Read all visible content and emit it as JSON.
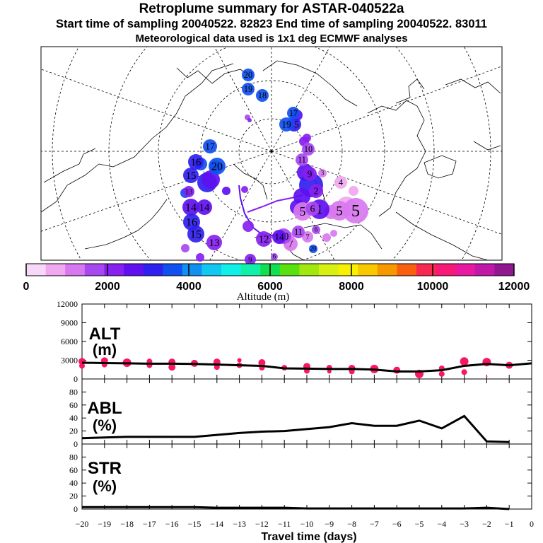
{
  "titles": {
    "main": "Retroplume summary for ASTAR-040522a",
    "sampling": "Start time of sampling 20040522. 82823     End time of sampling 20040522. 83011",
    "meteo": "Meteorological data used is 1x1 deg ECMWF analyses"
  },
  "colorbar": {
    "label": "Altitude (m)",
    "ticks": [
      0,
      2000,
      4000,
      6000,
      8000,
      10000,
      12000
    ],
    "colors": [
      "#f8d8f8",
      "#f0a8f0",
      "#d878f0",
      "#a848f0",
      "#8820f0",
      "#6010f0",
      "#3020f0",
      "#1050f0",
      "#1090f0",
      "#10c8f0",
      "#10f0e8",
      "#10f0a8",
      "#10e050",
      "#58e010",
      "#a0e810",
      "#d8f010",
      "#f8f000",
      "#f8c800",
      "#f89800",
      "#f86010",
      "#f82850",
      "#f81878",
      "#e818a0",
      "#c018a8",
      "#901890"
    ]
  },
  "map": {
    "clusters": [
      {
        "n": "1",
        "c": "#6010f0"
      },
      {
        "n": "2",
        "c": "#8820f0"
      },
      {
        "n": "3",
        "c": "#d878f0"
      },
      {
        "n": "4",
        "c": "#f0a8f0"
      },
      {
        "n": "5",
        "c": "#d878f0"
      },
      {
        "n": "6",
        "c": "#a848f0"
      },
      {
        "n": "7",
        "c": "#d878f0"
      },
      {
        "n": "8",
        "c": "#d878f0"
      },
      {
        "n": "9",
        "c": "#8820f0"
      },
      {
        "n": "10",
        "c": "#a848f0"
      },
      {
        "n": "11",
        "c": "#a848f0"
      },
      {
        "n": "12",
        "c": "#8820f0"
      },
      {
        "n": "13",
        "c": "#8820f0"
      },
      {
        "n": "14",
        "c": "#6010f0"
      },
      {
        "n": "15",
        "c": "#3020f0"
      },
      {
        "n": "16",
        "c": "#3020f0"
      },
      {
        "n": "17",
        "c": "#1050f0"
      },
      {
        "n": "18",
        "c": "#1050f0"
      },
      {
        "n": "19",
        "c": "#1050f0"
      },
      {
        "n": "20",
        "c": "#1050f0"
      }
    ]
  },
  "chart_data": [
    {
      "type": "line",
      "panel": "ALT",
      "ylabel": "ALT (m)",
      "ylim": [
        0,
        12000
      ],
      "yticks": [
        0,
        3000,
        6000,
        9000,
        12000
      ],
      "x": [
        -20,
        -19,
        -18,
        -17,
        -16,
        -15,
        -14,
        -13,
        -12,
        -11,
        -10,
        -9,
        -8,
        -7,
        -6,
        -5,
        -4,
        -3,
        -2,
        -1,
        0
      ],
      "values": [
        2600,
        2550,
        2500,
        2450,
        2450,
        2400,
        2300,
        2200,
        2100,
        1700,
        1650,
        1600,
        1600,
        1500,
        1200,
        1200,
        1400,
        2100,
        2400,
        2200,
        2500
      ],
      "markers": [
        {
          "x": -20,
          "y": 2800,
          "s": 5
        },
        {
          "x": -20,
          "y": 2100,
          "s": 4
        },
        {
          "x": -19,
          "y": 2900,
          "s": 5
        },
        {
          "x": -19,
          "y": 2300,
          "s": 4
        },
        {
          "x": -18,
          "y": 2600,
          "s": 6
        },
        {
          "x": -17,
          "y": 2800,
          "s": 4
        },
        {
          "x": -17,
          "y": 2200,
          "s": 4
        },
        {
          "x": -16,
          "y": 2700,
          "s": 5
        },
        {
          "x": -16,
          "y": 1900,
          "s": 5
        },
        {
          "x": -15,
          "y": 2500,
          "s": 5
        },
        {
          "x": -14,
          "y": 2700,
          "s": 5
        },
        {
          "x": -14,
          "y": 1900,
          "s": 4
        },
        {
          "x": -13,
          "y": 2200,
          "s": 4
        },
        {
          "x": -13,
          "y": 3000,
          "s": 3
        },
        {
          "x": -12,
          "y": 2600,
          "s": 5
        },
        {
          "x": -12,
          "y": 1800,
          "s": 4
        },
        {
          "x": -11,
          "y": 1800,
          "s": 4
        },
        {
          "x": -10,
          "y": 2000,
          "s": 5
        },
        {
          "x": -10,
          "y": 1300,
          "s": 4
        },
        {
          "x": -9,
          "y": 1800,
          "s": 4
        },
        {
          "x": -9,
          "y": 1200,
          "s": 3
        },
        {
          "x": -8,
          "y": 1700,
          "s": 5
        },
        {
          "x": -8,
          "y": 1200,
          "s": 4
        },
        {
          "x": -7,
          "y": 1600,
          "s": 6
        },
        {
          "x": -6,
          "y": 1400,
          "s": 5
        },
        {
          "x": -5,
          "y": 800,
          "s": 6
        },
        {
          "x": -4,
          "y": 1700,
          "s": 4
        },
        {
          "x": -4,
          "y": 800,
          "s": 4
        },
        {
          "x": -3,
          "y": 2800,
          "s": 6
        },
        {
          "x": -3,
          "y": 1100,
          "s": 4
        },
        {
          "x": -2,
          "y": 2700,
          "s": 6
        },
        {
          "x": -2,
          "y": 400,
          "s": 1
        },
        {
          "x": -1,
          "y": 2200,
          "s": 5
        }
      ],
      "marker_color": "#f81860"
    },
    {
      "type": "line",
      "panel": "ABL",
      "ylabel": "ABL (%)",
      "ylim": [
        0,
        100
      ],
      "yticks": [
        0,
        20,
        40,
        60,
        80
      ],
      "x": [
        -20,
        -19,
        -18,
        -17,
        -16,
        -15,
        -14,
        -13,
        -12,
        -11,
        -10,
        -9,
        -8,
        -7,
        -6,
        -5,
        -4,
        -3,
        -2,
        -1
      ],
      "values": [
        9,
        10,
        11,
        11,
        11,
        11,
        14,
        17,
        19,
        20,
        23,
        26,
        32,
        28,
        28,
        36,
        24,
        43,
        4,
        3
      ]
    },
    {
      "type": "line",
      "panel": "STR",
      "ylabel": "STR (%)",
      "ylim": [
        0,
        100
      ],
      "yticks": [
        0,
        20,
        40,
        60,
        80
      ],
      "x": [
        -20,
        -19,
        -18,
        -17,
        -16,
        -15,
        -14,
        -13,
        -12,
        -11,
        -10,
        -9,
        -8,
        -7,
        -6,
        -5,
        -4,
        -3,
        -2,
        -1
      ],
      "values": [
        3,
        3,
        3,
        3,
        3,
        3,
        2,
        2,
        2,
        2,
        1,
        1,
        1,
        1,
        1,
        1,
        1,
        1,
        2,
        0
      ]
    }
  ],
  "xaxis": {
    "label": "Travel time (days)",
    "ticks": [
      -20,
      -19,
      -18,
      -17,
      -16,
      -15,
      -14,
      -13,
      -12,
      -11,
      -10,
      -9,
      -8,
      -7,
      -6,
      -5,
      -4,
      -3,
      -2,
      -1,
      0
    ],
    "tick_labels": [
      "−20",
      "−19",
      "−18",
      "−17",
      "−16",
      "−15",
      "−14",
      "−13",
      "−12",
      "−11",
      "−10",
      "−9",
      "−8",
      "−7",
      "−6",
      "−5",
      "−4",
      "−3",
      "−2",
      "−1",
      "0"
    ]
  },
  "panel_labels": {
    "alt": {
      "line1": "ALT",
      "line2": "(m)"
    },
    "abl": {
      "line1": "ABL",
      "line2": "(%)"
    },
    "str": {
      "line1": "STR",
      "line2": "(%)"
    }
  }
}
